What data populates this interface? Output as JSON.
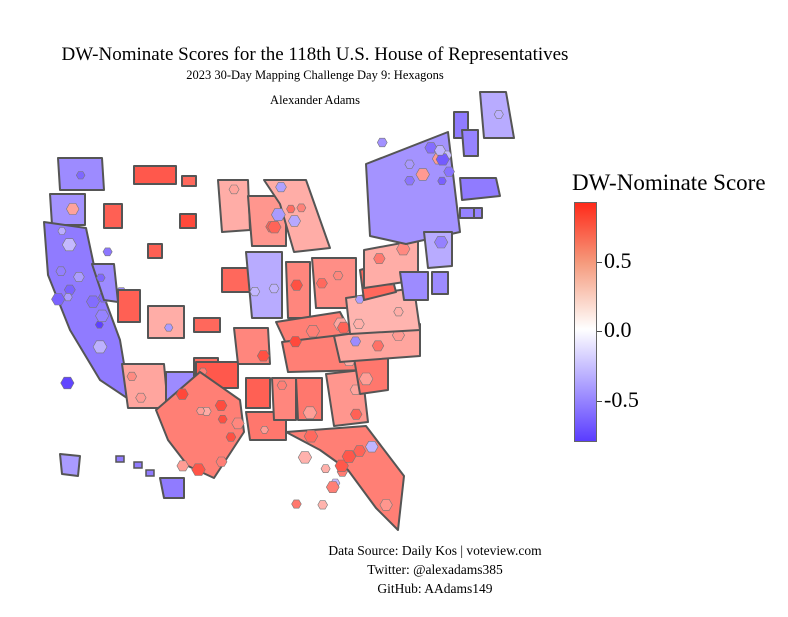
{
  "header": {
    "title": "DW-Nominate Scores for the 118th U.S. House of Representatives",
    "subtitle": "2023 30-Day Mapping Challenge Day 9: Hexagons",
    "author": "Alexander Adams"
  },
  "legend": {
    "title": "DW-Nominate Score",
    "ticks": [
      "0.5",
      "0.0",
      "-0.5"
    ],
    "scale_min": -0.8,
    "scale_max": 0.9,
    "colors": {
      "high": "#ff2a1a",
      "mid": "#ffffff",
      "low": "#5a3cff"
    }
  },
  "footer": {
    "source": "Data Source: Daily Kos | voteview.com",
    "twitter": "Twitter: @alexadams385",
    "github": "GitHub: AAdams149"
  },
  "map": {
    "border_color": "#555555",
    "states": [
      {
        "id": "WA",
        "score": -0.3
      },
      {
        "id": "OR",
        "score": -0.25
      },
      {
        "id": "CA",
        "score": -0.4
      },
      {
        "id": "NV",
        "score": -0.3
      },
      {
        "id": "ID",
        "score": 0.55
      },
      {
        "id": "MT",
        "score": 0.6
      },
      {
        "id": "WY",
        "score": 0.7
      },
      {
        "id": "UT",
        "score": 0.55
      },
      {
        "id": "AZ",
        "score": 0.1
      },
      {
        "id": "CO",
        "score": 0.05
      },
      {
        "id": "NM",
        "score": -0.3
      },
      {
        "id": "ND",
        "score": 0.5
      },
      {
        "id": "SD",
        "score": 0.55
      },
      {
        "id": "NE",
        "score": 0.5
      },
      {
        "id": "KS",
        "score": 0.45
      },
      {
        "id": "OK",
        "score": 0.6
      },
      {
        "id": "TX",
        "score": 0.35
      },
      {
        "id": "MN",
        "score": 0.05
      },
      {
        "id": "IA",
        "score": 0.5
      },
      {
        "id": "MO",
        "score": 0.3
      },
      {
        "id": "AR",
        "score": 0.55
      },
      {
        "id": "LA",
        "score": 0.4
      },
      {
        "id": "WI",
        "score": 0.2
      },
      {
        "id": "IL",
        "score": -0.1
      },
      {
        "id": "MI",
        "score": 0.05
      },
      {
        "id": "IN",
        "score": 0.3
      },
      {
        "id": "OH",
        "score": 0.25
      },
      {
        "id": "KY",
        "score": 0.35
      },
      {
        "id": "TN",
        "score": 0.35
      },
      {
        "id": "MS",
        "score": 0.3
      },
      {
        "id": "AL",
        "score": 0.4
      },
      {
        "id": "GA",
        "score": 0.2
      },
      {
        "id": "FL",
        "score": 0.35
      },
      {
        "id": "SC",
        "score": 0.4
      },
      {
        "id": "NC",
        "score": 0.1
      },
      {
        "id": "VA",
        "score": 0.0
      },
      {
        "id": "WV",
        "score": 0.5
      },
      {
        "id": "PA",
        "score": 0.05
      },
      {
        "id": "NY",
        "score": -0.25
      },
      {
        "id": "NJ",
        "score": -0.1
      },
      {
        "id": "DE",
        "score": -0.3
      },
      {
        "id": "MD",
        "score": -0.3
      },
      {
        "id": "CT",
        "score": -0.35
      },
      {
        "id": "RI",
        "score": -0.35
      },
      {
        "id": "MA",
        "score": -0.4
      },
      {
        "id": "VT",
        "score": -0.4
      },
      {
        "id": "NH",
        "score": -0.35
      },
      {
        "id": "ME",
        "score": -0.1
      },
      {
        "id": "AK",
        "score": -0.2
      },
      {
        "id": "HI",
        "score": -0.4
      }
    ]
  }
}
